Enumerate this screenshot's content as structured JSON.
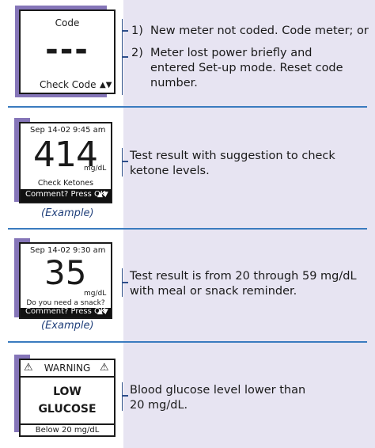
{
  "sections": [
    {
      "display": {
        "top_label": "Code",
        "main_value": "---",
        "bottom_label": "Check Code",
        "arrows": "▲▼"
      },
      "items": [
        {
          "num": "1)",
          "text": "New meter not coded. Code meter; or"
        },
        {
          "num": "2)",
          "line1": "Meter lost power briefly and",
          "line2": "entered Set-up mode. Reset code",
          "line3": "number."
        }
      ]
    },
    {
      "display": {
        "date": "Sep 14-02",
        "time": "9:45 am",
        "value": "414",
        "unit": "mg/dL",
        "message": "Check Ketones",
        "comment": "Comment? Press OK",
        "arrows": "▲▼"
      },
      "example": "(Example)",
      "line1": "Test result with suggestion to check",
      "line2": "ketone levels."
    },
    {
      "display": {
        "date": "Sep 14-02",
        "time": "9:30 am",
        "value": "35",
        "unit": "mg/dL",
        "message": "Do you need a snack?",
        "comment": "Comment? Press OK",
        "arrows": "▲▼"
      },
      "example": "(Example)",
      "line1": "Test result is from 20 through 59 mg/dL",
      "line2": "with meal or snack reminder."
    },
    {
      "display": {
        "warning": "WARNING",
        "line1": "LOW",
        "line2": "GLUCOSE",
        "bottom": "Below 20 mg/dL"
      },
      "line1": "Blood glucose level lower than",
      "line2": "20 mg/dL."
    }
  ],
  "colors": {
    "accent_purple": "#8575b8",
    "panel_lavender": "#e7e4f2",
    "divider_blue": "#3a7bbf",
    "example_text": "#1f3f7a"
  }
}
